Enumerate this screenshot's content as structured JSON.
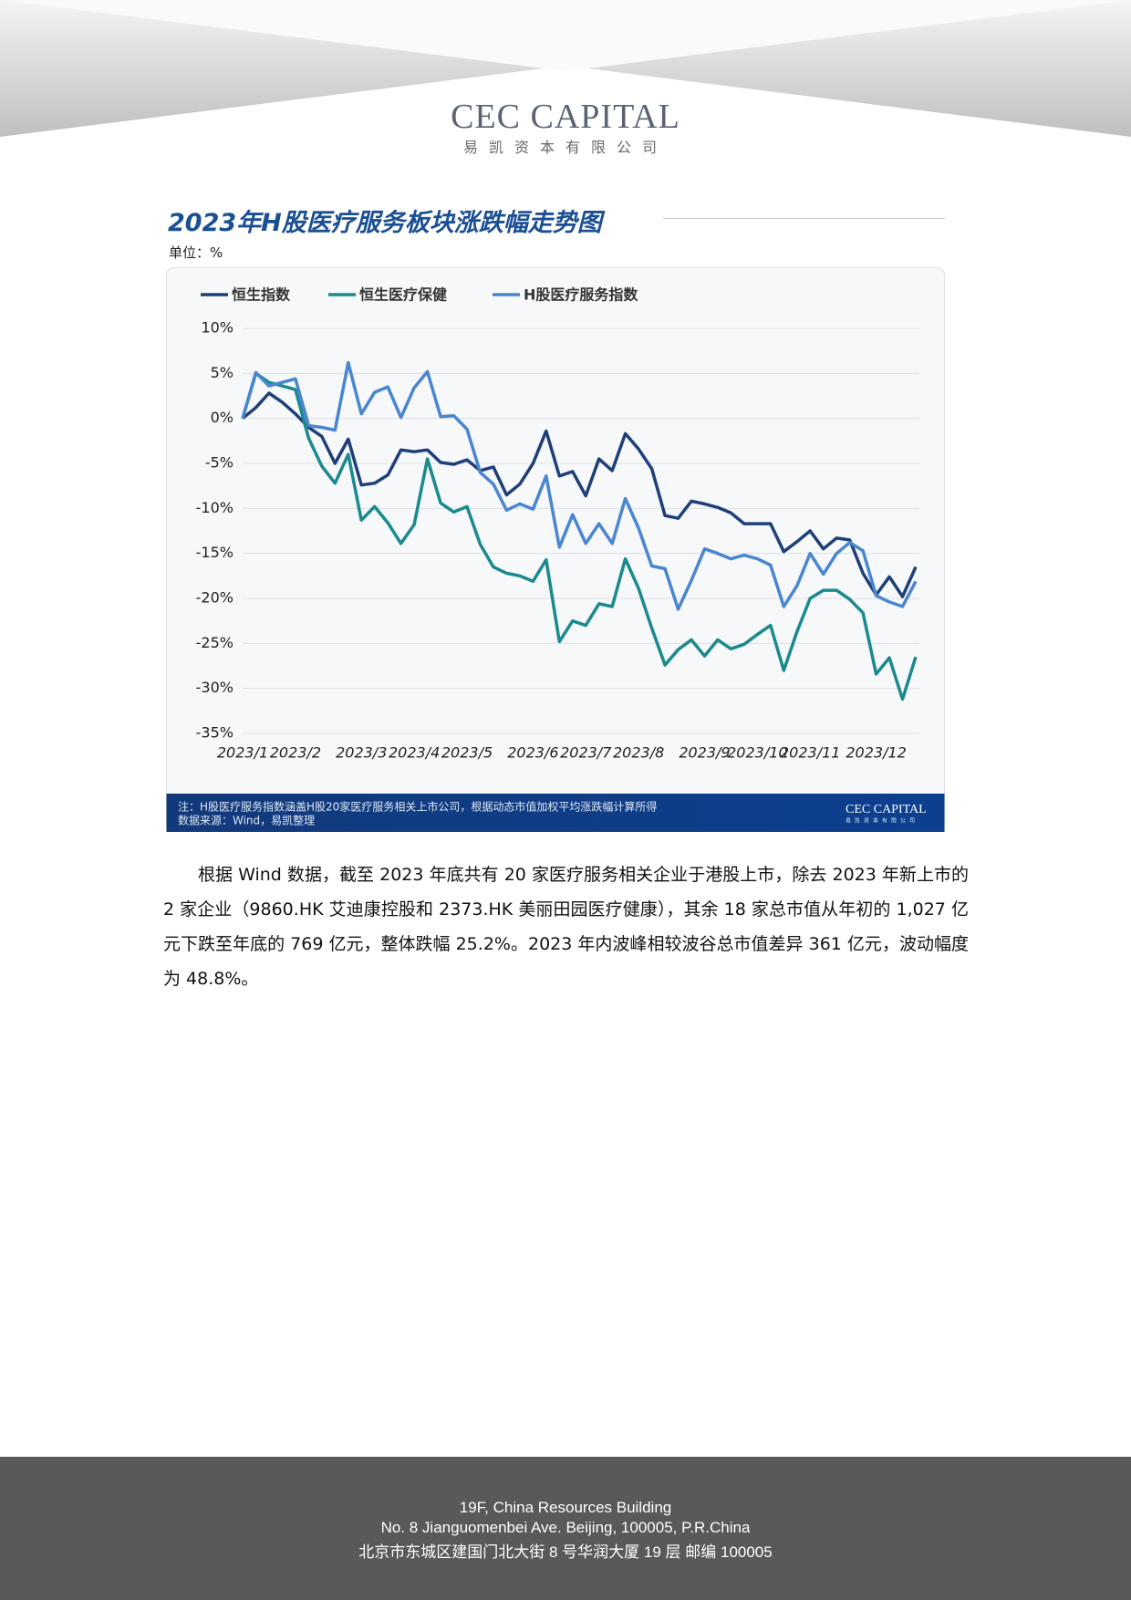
{
  "header": {
    "logo": "CEC CAPITAL",
    "logo_subtitle": "易凯资本有限公司"
  },
  "chart_data": {
    "type": "line",
    "title": "2023年H股医疗服务板块涨跌幅走势图",
    "unit": "单位：%",
    "categories": [
      "2023/1",
      null,
      null,
      null,
      "2023/2",
      null,
      null,
      null,
      null,
      "2023/3",
      null,
      null,
      null,
      "2023/4",
      null,
      null,
      null,
      "2023/5",
      null,
      null,
      null,
      null,
      "2023/6",
      null,
      null,
      null,
      "2023/7",
      null,
      null,
      null,
      "2023/8",
      null,
      null,
      null,
      null,
      "2023/9",
      null,
      null,
      null,
      "2023/10",
      null,
      null,
      null,
      "2023/11",
      null,
      null,
      null,
      null,
      "2023/12",
      null,
      null,
      null
    ],
    "series": [
      {
        "name": "恒生指数",
        "color": "#1f3f7a",
        "values": [
          0,
          1.2,
          2.8,
          1.8,
          0.5,
          -1,
          -2,
          -5,
          -2.3,
          -7.4,
          -7.2,
          -6.3,
          -3.5,
          -3.7,
          -3.5,
          -4.9,
          -5.1,
          -4.6,
          -5.8,
          -5.4,
          -8.5,
          -7.3,
          -5,
          -1.4,
          -6.4,
          -5.9,
          -8.6,
          -4.5,
          -5.8,
          -1.7,
          -3.4,
          -5.6,
          -10.8,
          -11.1,
          -9.2,
          -9.5,
          -9.9,
          -10.5,
          -11.7,
          -11.7,
          -11.7,
          -14.8,
          -13.7,
          -12.5,
          -14.5,
          -13.3,
          -13.5,
          -17.2,
          -19.6,
          -17.6,
          -19.8,
          -16.5
        ]
      },
      {
        "name": "恒生医疗保健",
        "color": "#1a8a8f",
        "values": [
          0,
          5,
          4,
          3.6,
          3.2,
          -2.2,
          -5.3,
          -7.2,
          -4,
          -11.3,
          -9.8,
          -11.6,
          -13.9,
          -11.8,
          -4.5,
          -9.4,
          -10.4,
          -9.8,
          -14,
          -16.5,
          -17.2,
          -17.5,
          -18.1,
          -15.7,
          -24.8,
          -22.5,
          -23,
          -20.6,
          -20.9,
          -15.6,
          -18.9,
          -23.3,
          -27.4,
          -25.7,
          -24.6,
          -26.4,
          -24.6,
          -25.6,
          -25.1,
          -24,
          -23,
          -28,
          -23.7,
          -20,
          -19.1,
          -19.1,
          -20.1,
          -21.6,
          -28.4,
          -26.6,
          -31.2,
          -26.5
        ]
      },
      {
        "name": "H股医疗服务指数",
        "color": "#4a86d0",
        "values": [
          0,
          5.1,
          3.6,
          4,
          4.4,
          -0.8,
          -1,
          -1.3,
          6.2,
          0.5,
          2.9,
          3.5,
          0.1,
          3.4,
          5.2,
          0.2,
          0.3,
          -1.2,
          -6,
          -7.3,
          -10.2,
          -9.5,
          -10.1,
          -6.4,
          -14.3,
          -10.7,
          -13.9,
          -11.7,
          -13.9,
          -8.9,
          -12.2,
          -16.4,
          -16.7,
          -21.2,
          -18,
          -14.5,
          -15,
          -15.6,
          -15.2,
          -15.6,
          -16.3,
          -20.9,
          -18.6,
          -15,
          -17.3,
          -15,
          -13.8,
          -14.7,
          -19.7,
          -20.4,
          -20.9,
          -18.1
        ]
      }
    ],
    "ylim": [
      -35,
      10
    ],
    "yticks": [
      {
        "value": 10,
        "label": "10%"
      },
      {
        "value": 5,
        "label": "5%"
      },
      {
        "value": 0,
        "label": "0%"
      },
      {
        "value": -5,
        "label": "-5%"
      },
      {
        "value": -10,
        "label": "-10%"
      },
      {
        "value": -15,
        "label": "-15%"
      },
      {
        "value": -20,
        "label": "-20%"
      },
      {
        "value": -25,
        "label": "-25%"
      },
      {
        "value": -30,
        "label": "-30%"
      },
      {
        "value": -35,
        "label": "-35%"
      }
    ],
    "grid": true,
    "note": "注：H股医疗服务指数涵盖H股20家医疗服务相关上市公司，根据动态市值加权平均涨跌幅计算所得",
    "source": "数据来源：Wind，易凯整理"
  },
  "paragraph": "根据 Wind 数据，截至 2023 年底共有 20 家医疗服务相关企业于港股上市，除去 2023 年新上市的 2 家企业（9860.HK 艾迪康控股和 2373.HK  美丽田园医疗健康），其余 18 家总市值从年初的 1,027 亿元下跌至年底的 769 亿元，整体跌幅 25.2%。2023 年内波峰相较波谷总市值差异 361 亿元，波动幅度为 48.8%。",
  "footer": {
    "lines": [
      "19F, China Resources Building",
      "No. 8 Jianguomenbei Ave. Beijing, 100005, P.R.China",
      "北京市东城区建国门北大街 8 号华润大厦 19 层  邮编  100005"
    ]
  }
}
